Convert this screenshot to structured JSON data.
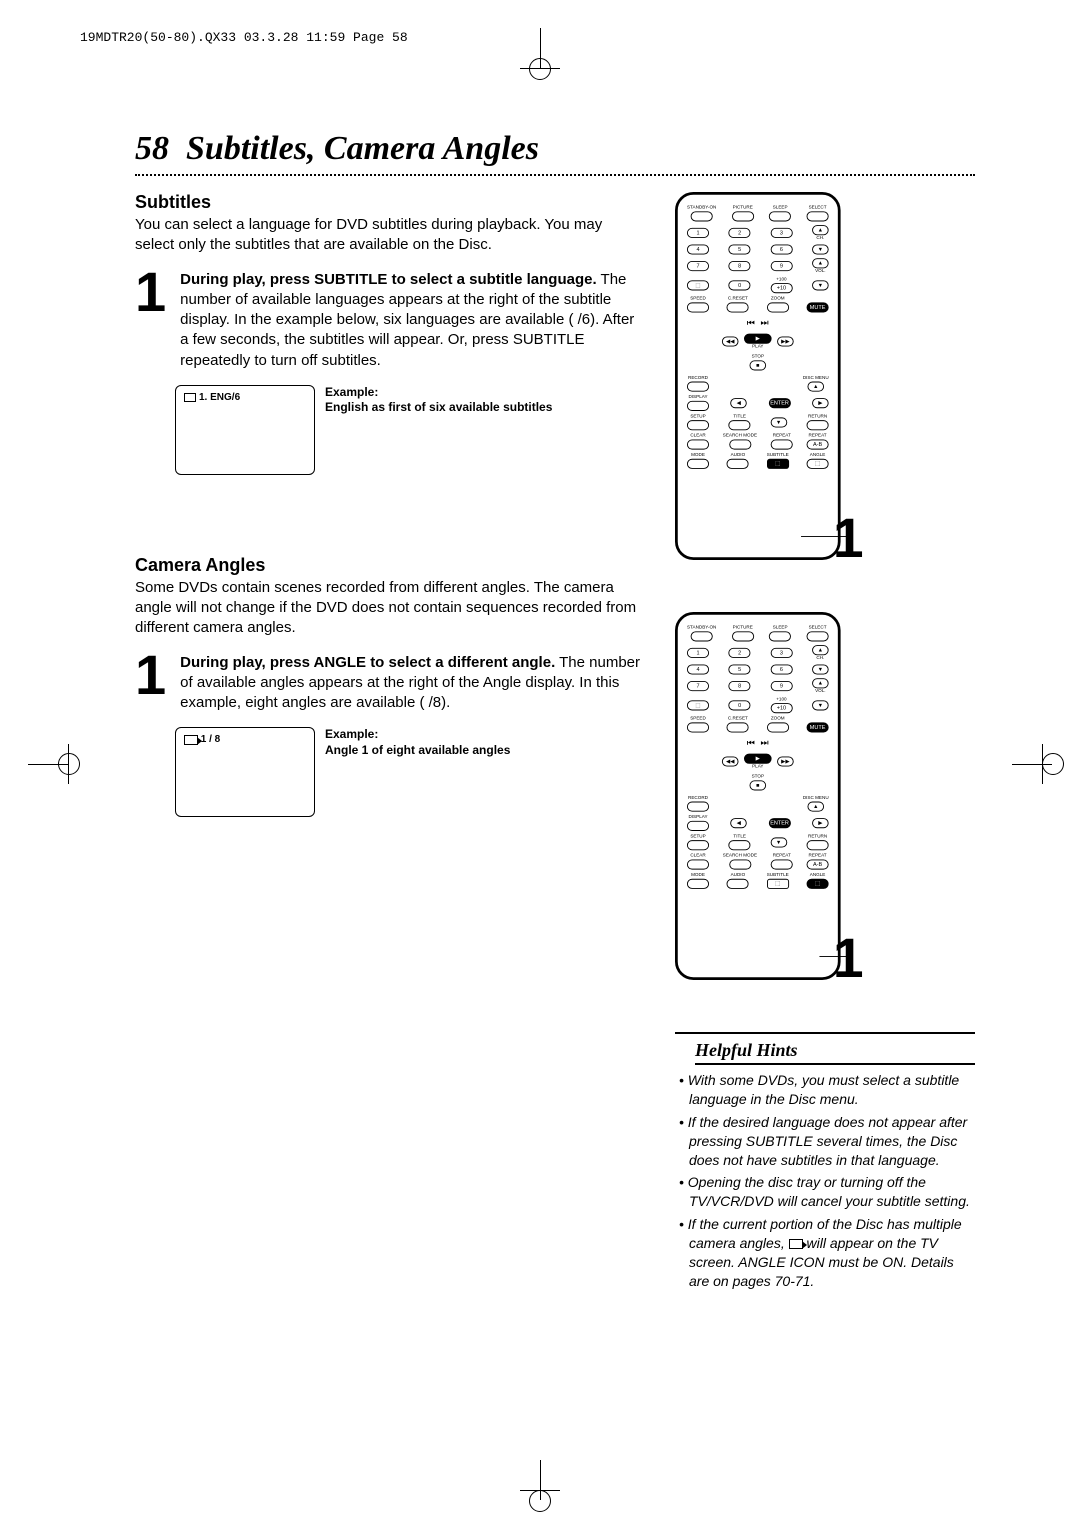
{
  "header": "19MDTR20(50-80).QX33  03.3.28 11:59  Page 58",
  "page_number": "58",
  "title": "Subtitles, Camera Angles",
  "subtitles": {
    "heading": "Subtitles",
    "intro": "You can select a language for DVD subtitles during playback. You may select only the subtitles that are available on the Disc.",
    "step_num": "1",
    "step_bold": "During play, press SUBTITLE to select a subtitle language.",
    "step_rest": " The number of available languages appears at the right of the subtitle display. In the example below, six languages are available (  /6). After a few seconds, the subtitles will appear. Or, press SUBTITLE repeatedly to turn off subtitles.",
    "box_text": "1. ENG/6",
    "example_title": "Example:",
    "example_text": "English as first of six available subtitles"
  },
  "angles": {
    "heading": "Camera Angles",
    "intro": "Some DVDs contain scenes recorded from different angles. The camera angle will not change if the DVD does not contain sequences recorded from different camera angles.",
    "step_num": "1",
    "step_bold": "During play, press ANGLE to select a different angle.",
    "step_rest": " The number of available angles appears at the right of the Angle display. In this example, eight angles are available (  /8).",
    "box_text": "1 / 8",
    "example_title": "Example:",
    "example_text": "Angle 1 of eight available angles"
  },
  "remote": {
    "row1": [
      "STANDBY-ON",
      "PICTURE",
      "SLEEP",
      "SELECT"
    ],
    "nums": [
      "1",
      "2",
      "3",
      "4",
      "5",
      "6",
      "7",
      "8",
      "9",
      "0"
    ],
    "ch": "CH.",
    "vol": "VOL.",
    "plus100": "+100",
    "plus10": "+10",
    "speed": "SPEED",
    "creset": "C.RESET",
    "zoom": "ZOOM",
    "mute": "MUTE",
    "play": "PLAY",
    "stop": "STOP",
    "record": "RECORD",
    "disc": "DISC MENU",
    "display": "DISPLAY",
    "enter": "ENTER",
    "setup": "SETUP",
    "title_b": "TITLE",
    "return": "RETURN",
    "clear": "CLEAR",
    "search": "SEARCH MODE",
    "repeat": "REPEAT",
    "ab": "A-B",
    "mode": "MODE",
    "audio": "AUDIO",
    "subtitle": "SUBTITLE",
    "angle": "ANGLE",
    "callout": "1"
  },
  "hints": {
    "title": "Helpful Hints",
    "items": [
      "With some DVDs, you must select a subtitle language in the Disc menu.",
      "If the desired language does not appear after pressing SUBTITLE several times, the Disc does not have subtitles in that language.",
      "Opening the disc tray or turning off the TV/VCR/DVD will cancel your subtitle setting.",
      "If the current portion of the Disc has multiple camera angles, __CAM__ will appear on the TV screen. ANGLE ICON must be ON. Details are on pages 70-71."
    ]
  },
  "colors": {
    "text": "#000000",
    "bg": "#ffffff"
  }
}
